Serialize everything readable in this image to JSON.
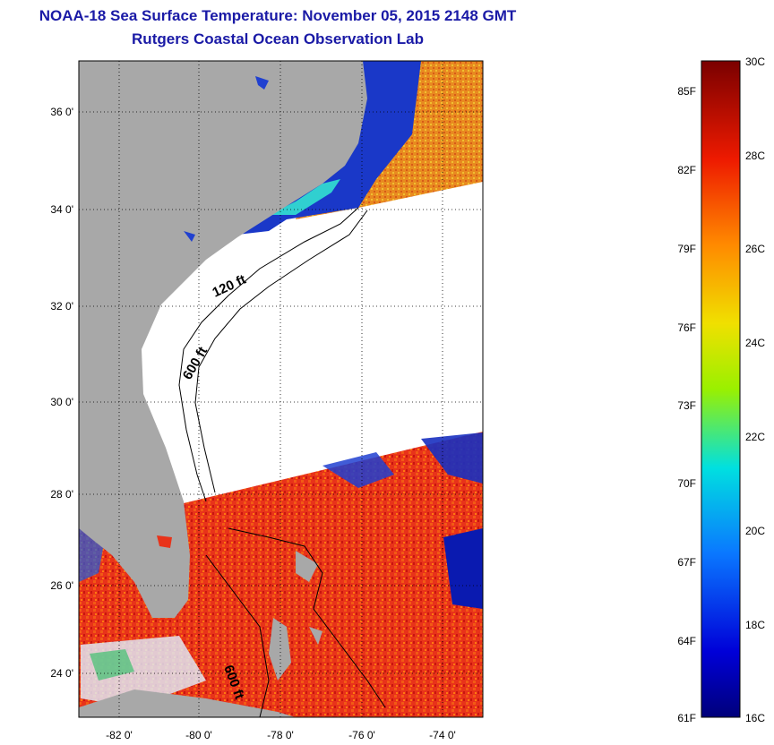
{
  "title_line1": "NOAA-18 Sea Surface Temperature:  November 05, 2015 2148 GMT",
  "title_line2": "Rutgers Coastal Ocean Observation Lab",
  "lat_labels": [
    "36 0'",
    "34 0'",
    "32 0'",
    "30 0'",
    "28 0'",
    "26 0'",
    "24 0'"
  ],
  "lon_labels": [
    "-82 0'",
    "-80 0'",
    "-78 0'",
    "-76 0'",
    "-74 0'"
  ],
  "contour_labels": [
    "120 ft",
    "600 ft",
    "600 ft"
  ],
  "colorbar": {
    "fahrenheit": [
      "85F",
      "82F",
      "79F",
      "76F",
      "73F",
      "70F",
      "67F",
      "64F",
      "61F"
    ],
    "celsius": [
      "30C",
      "28C",
      "26C",
      "24C",
      "22C",
      "20C",
      "18C",
      "16C"
    ]
  },
  "colors": {
    "land": "#a8a8a8",
    "title": "#1a1aa6",
    "warm": "#e8331a",
    "cool": "#0a1ab0"
  }
}
